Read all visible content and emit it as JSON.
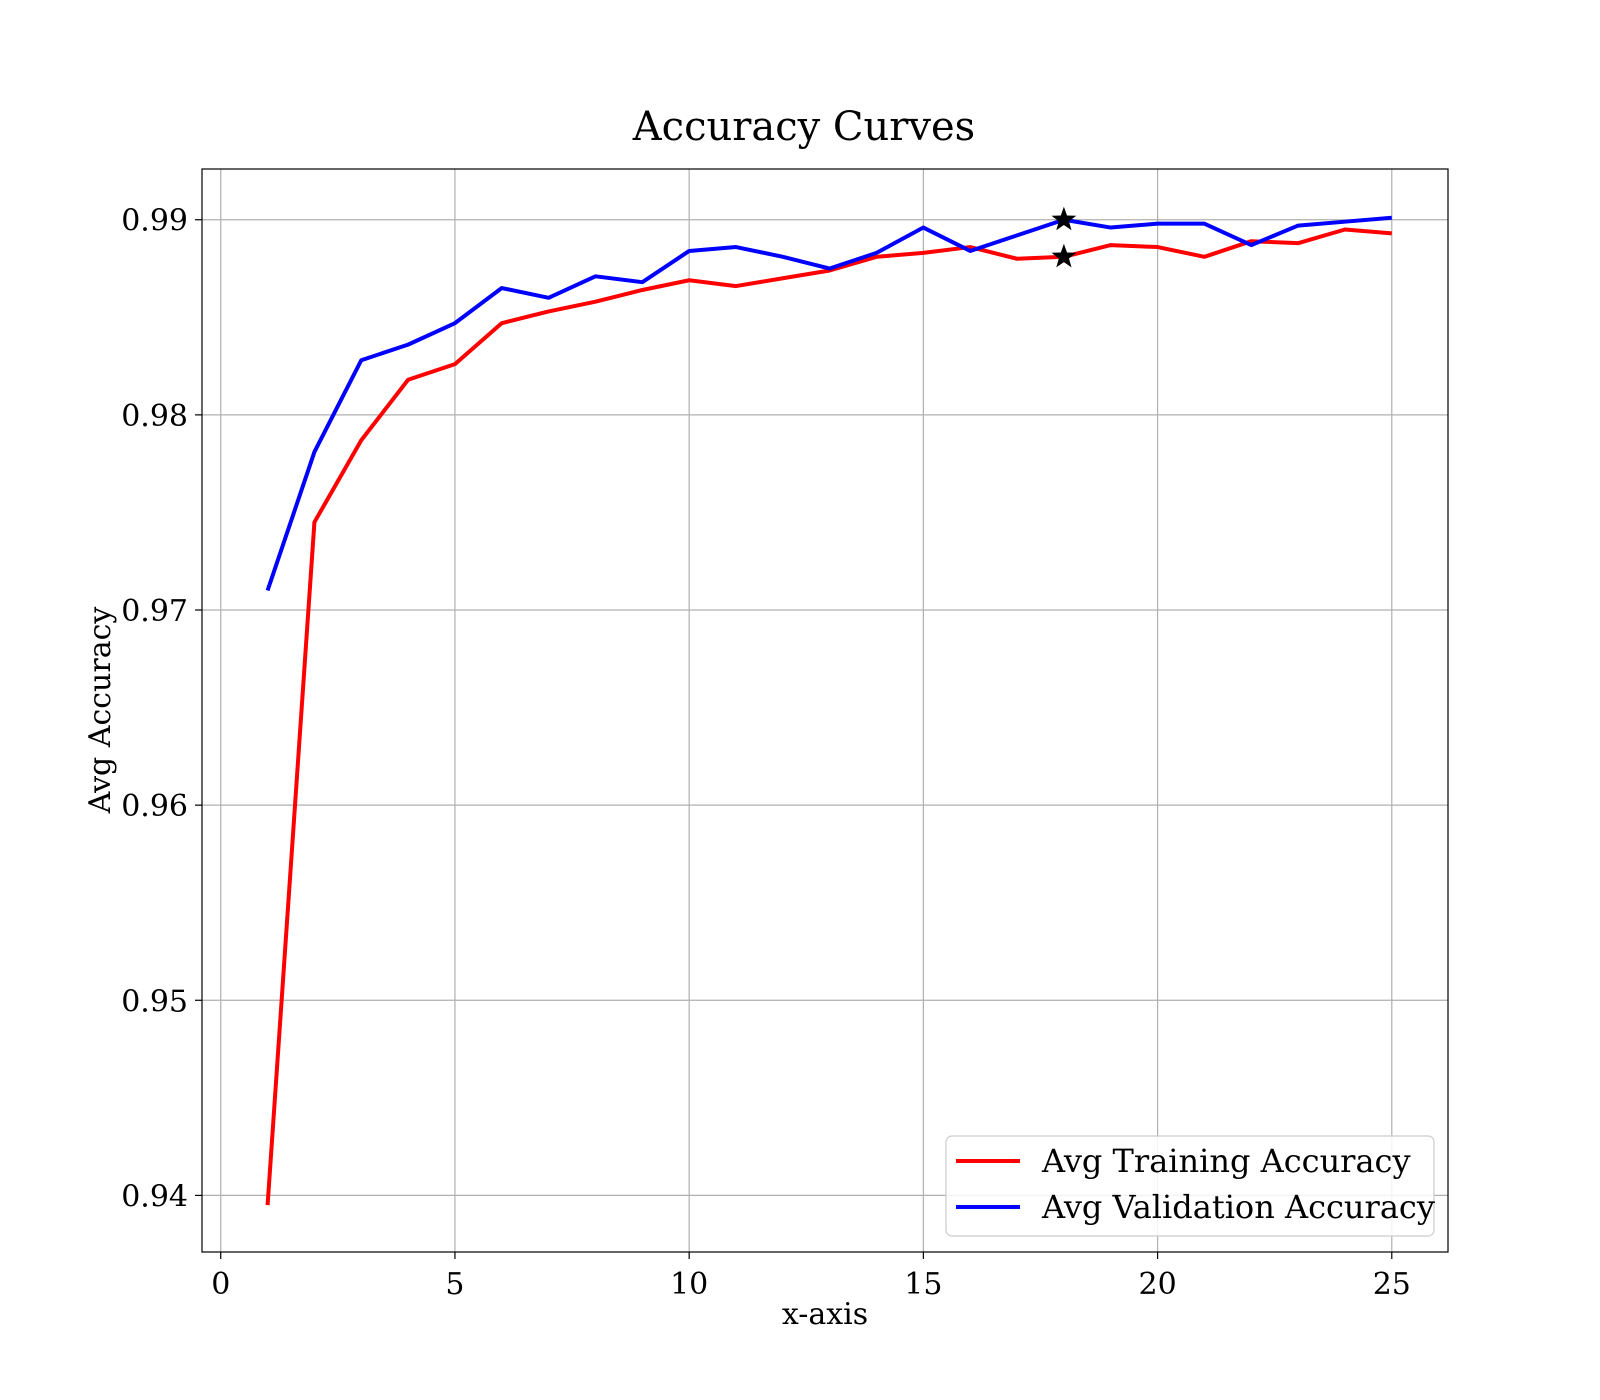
{
  "chart_data": {
    "type": "line",
    "title": "Accuracy Curves",
    "xlabel": "x-axis",
    "ylabel": "Avg Accuracy",
    "xlim": [
      -0.4,
      26.2
    ],
    "ylim": [
      0.9371,
      0.9926
    ],
    "grid": true,
    "legend_position": "bottom-right",
    "x_ticks": [
      0,
      5,
      10,
      15,
      20,
      25
    ],
    "x_tick_labels": [
      "0",
      "5",
      "10",
      "15",
      "20",
      "25"
    ],
    "y_ticks": [
      0.94,
      0.95,
      0.96,
      0.97,
      0.98,
      0.99
    ],
    "y_tick_labels": [
      "0.94",
      "0.95",
      "0.96",
      "0.97",
      "0.98",
      "0.99"
    ],
    "x": [
      1,
      2,
      3,
      4,
      5,
      6,
      7,
      8,
      9,
      10,
      11,
      12,
      13,
      14,
      15,
      16,
      17,
      18,
      19,
      20,
      21,
      22,
      23,
      24,
      25
    ],
    "series": [
      {
        "name": "Avg Training Accuracy",
        "color": "#ff0000",
        "values": [
          0.9395,
          0.9745,
          0.9787,
          0.9818,
          0.9826,
          0.9847,
          0.9853,
          0.9858,
          0.9864,
          0.9869,
          0.9866,
          0.987,
          0.9874,
          0.9881,
          0.9883,
          0.9886,
          0.988,
          0.9881,
          0.9887,
          0.9886,
          0.9881,
          0.9889,
          0.9888,
          0.9895,
          0.9893
        ]
      },
      {
        "name": "Avg Validation Accuracy",
        "color": "#0000ff",
        "values": [
          0.971,
          0.9781,
          0.9828,
          0.9836,
          0.9847,
          0.9865,
          0.986,
          0.9871,
          0.9868,
          0.9884,
          0.9886,
          0.9881,
          0.9875,
          0.9883,
          0.9896,
          0.9884,
          0.9892,
          0.99,
          0.9896,
          0.9898,
          0.9898,
          0.9887,
          0.9897,
          0.9899,
          0.9901
        ]
      }
    ],
    "markers": [
      {
        "series": "Avg Validation Accuracy",
        "x": 18,
        "y": 0.99,
        "shape": "star",
        "color": "#000000"
      },
      {
        "series": "Avg Training Accuracy",
        "x": 18,
        "y": 0.9881,
        "shape": "star",
        "color": "#000000"
      }
    ]
  }
}
